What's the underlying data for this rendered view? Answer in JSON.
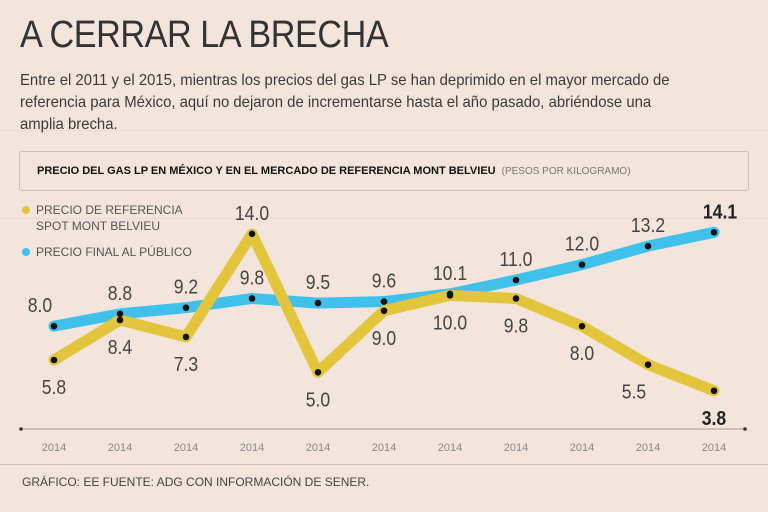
{
  "title": "A CERRAR LA BRECHA",
  "intro": "Entre el 2011 y el 2015, mientras los precios del gas LP se han deprimido en el mayor mercado de referencia para México, aquí no dejaron de incrementarse hasta el año pasado, abriéndose una amplia brecha.",
  "source": "GRÁFICO: EE  FUENTE: ADG CON INFORMACIÓN DE SENER.",
  "chart_data": {
    "type": "line",
    "title": "PRECIO DEL GAS LP EN MÉXICO Y EN EL MERCADO DE REFERENCIA MONT BELVIEU",
    "unit": "(PESOS POR KILOGRAMO)",
    "categories": [
      "2014",
      "2014",
      "2014",
      "2014",
      "2014",
      "2014",
      "2014",
      "2014",
      "2014",
      "2014",
      "2014"
    ],
    "ylim": [
      1.9,
      16.2
    ],
    "grid": false,
    "legend_placement": "top-left",
    "series": [
      {
        "name": "PRECIO DE REFERENCIA SPOT MONT BELVIEU",
        "legend_lines": [
          "PRECIO DE REFERENCIA",
          "SPOT MONT BELVIEU"
        ],
        "color": "#e3c53c",
        "values": [
          5.8,
          8.4,
          7.3,
          14.0,
          5.0,
          9.0,
          10.0,
          9.8,
          8.0,
          5.5,
          3.8
        ],
        "labels": [
          "5.8",
          "8.4",
          "7.3",
          "14.0",
          "5.0",
          "9.0",
          "10.0",
          "9.8",
          "8.0",
          "5.5",
          "3.8"
        ],
        "label_pos": [
          "below",
          "below",
          "below",
          "above",
          "below",
          "below",
          "below",
          "below",
          "below",
          "below-left",
          "below"
        ]
      },
      {
        "name": "PRECIO FINAL AL PÚBLICO",
        "legend_lines": [
          "PRECIO FINAL AL PÚBLICO"
        ],
        "color": "#3fc1ec",
        "values": [
          8.0,
          8.8,
          9.2,
          9.8,
          9.5,
          9.6,
          10.1,
          11.0,
          12.0,
          13.2,
          14.1
        ],
        "labels": [
          "8.0",
          "8.8",
          "9.2",
          "9.8",
          "9.5",
          "9.6",
          "10.1",
          "11.0",
          "12.0",
          "13.2",
          "14.1"
        ],
        "label_pos": [
          "above-left",
          "above",
          "above",
          "above",
          "above",
          "above",
          "above",
          "above",
          "above",
          "above",
          "above"
        ]
      }
    ]
  }
}
